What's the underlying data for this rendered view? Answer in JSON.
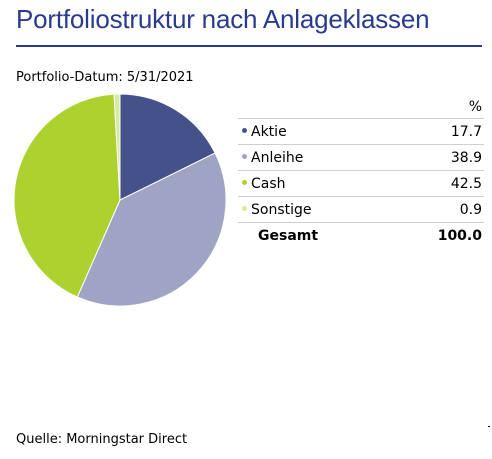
{
  "title": "Portfoliostruktur nach Anlageklassen",
  "portfolio_date": "Portfolio-Datum: 5/31/2021",
  "source": "Quelle: Morningstar Direct",
  "colors": {
    "title": "#2a3b8f",
    "aktie": "#44518a",
    "anleihe": "#9fa4c4",
    "cash": "#add12f",
    "sonstige": "#d5ec9a"
  },
  "chart_data": {
    "type": "pie",
    "title": "Portfoliostruktur nach Anlageklassen",
    "value_header": "%",
    "slices": [
      {
        "label": "Aktie",
        "value": 17.7,
        "display": "17.7",
        "color": "#44518a"
      },
      {
        "label": "Anleihe",
        "value": 38.9,
        "display": "38.9",
        "color": "#9fa4c4"
      },
      {
        "label": "Cash",
        "value": 42.5,
        "display": "42.5",
        "color": "#add12f"
      },
      {
        "label": "Sonstige",
        "value": 0.9,
        "display": "0.9",
        "color": "#d5ec9a"
      }
    ],
    "total_label": "Gesamt",
    "total_display": "100.0",
    "legend_position": "right"
  }
}
